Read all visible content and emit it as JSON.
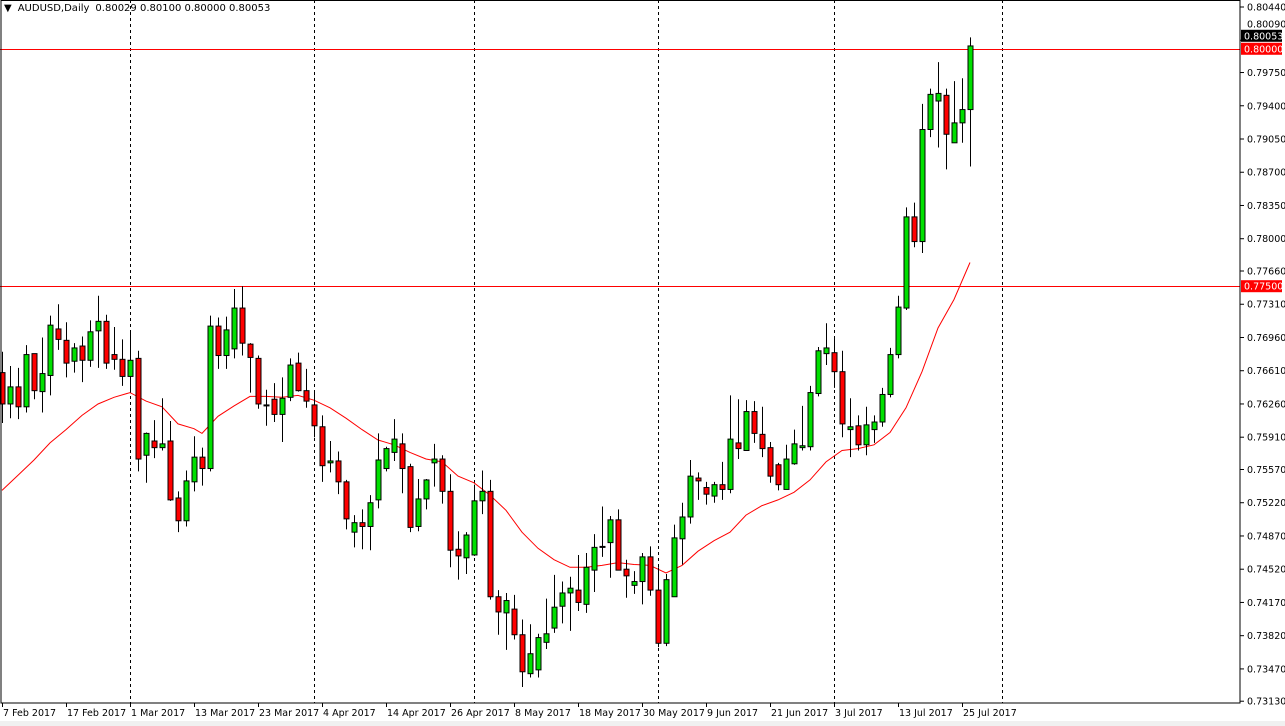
{
  "header": {
    "menu_icon": "triangle-down-icon",
    "symbol_period": "AUDUSD,Daily",
    "ohlc": "0.80029 0.80100 0.80000 0.80053"
  },
  "chart_data": {
    "type": "candlestick",
    "symbol": "AUDUSD",
    "period": "Daily",
    "ylim": [
      0.7313,
      0.8044
    ],
    "y_ticks": [
      "0.80440",
      "0.80090",
      "0.79750",
      "0.79400",
      "0.79050",
      "0.78700",
      "0.78350",
      "0.78000",
      "0.77660",
      "0.77310",
      "0.76960",
      "0.76610",
      "0.76260",
      "0.75910",
      "0.75570",
      "0.75220",
      "0.74870",
      "0.74520",
      "0.74170",
      "0.73820",
      "0.73470",
      "0.73130"
    ],
    "x_ticks": [
      {
        "date": "2017-02-07",
        "label": "7 Feb 2017"
      },
      {
        "date": "2017-02-17",
        "label": "17 Feb 2017"
      },
      {
        "date": "2017-03-01",
        "label": "1 Mar 2017"
      },
      {
        "date": "2017-03-13",
        "label": "13 Mar 2017"
      },
      {
        "date": "2017-03-23",
        "label": "23 Mar 2017"
      },
      {
        "date": "2017-04-04",
        "label": "4 Apr 2017"
      },
      {
        "date": "2017-04-14",
        "label": "14 Apr 2017"
      },
      {
        "date": "2017-04-26",
        "label": "26 Apr 2017"
      },
      {
        "date": "2017-05-08",
        "label": "8 May 2017"
      },
      {
        "date": "2017-05-18",
        "label": "18 May 2017"
      },
      {
        "date": "2017-05-30",
        "label": "30 May 2017"
      },
      {
        "date": "2017-06-09",
        "label": "9 Jun 2017"
      },
      {
        "date": "2017-06-21",
        "label": "21 Jun 2017"
      },
      {
        "date": "2017-07-03",
        "label": "3 Jul 2017"
      },
      {
        "date": "2017-07-13",
        "label": "13 Jul 2017"
      },
      {
        "date": "2017-07-25",
        "label": "25 Jul 2017"
      }
    ],
    "month_separators": [
      "2017-03-01",
      "2017-04-03",
      "2017-05-01",
      "2017-06-01",
      "2017-07-03",
      "2017-08-01"
    ],
    "grid": false,
    "colors": {
      "bull": "#00e000",
      "bear": "#ff0000",
      "outline": "#000000",
      "ma": "#ff0000",
      "level": "#ff0000",
      "bid": "#000000"
    },
    "horizontal_levels": [
      {
        "price": 0.8,
        "label": "0.80000"
      },
      {
        "price": 0.775,
        "label": "0.77500"
      }
    ],
    "bid": {
      "price": 0.80053,
      "label": "0.80053"
    },
    "candle_fields": [
      "date",
      "open",
      "high",
      "low",
      "close"
    ],
    "candles": [
      [
        "2017-02-07",
        0.7659,
        0.7681,
        0.7606,
        0.7626
      ],
      [
        "2017-02-08",
        0.7626,
        0.7666,
        0.7611,
        0.7644
      ],
      [
        "2017-02-09",
        0.7644,
        0.7664,
        0.761,
        0.7623
      ],
      [
        "2017-02-10",
        0.7623,
        0.7688,
        0.7617,
        0.7678
      ],
      [
        "2017-02-13",
        0.7679,
        0.7679,
        0.7631,
        0.764
      ],
      [
        "2017-02-14",
        0.7639,
        0.7696,
        0.7617,
        0.7658
      ],
      [
        "2017-02-15",
        0.7656,
        0.7719,
        0.7635,
        0.7709
      ],
      [
        "2017-02-16",
        0.7705,
        0.7731,
        0.7683,
        0.7694
      ],
      [
        "2017-02-17",
        0.7693,
        0.7712,
        0.7654,
        0.7669
      ],
      [
        "2017-02-20",
        0.7671,
        0.769,
        0.7659,
        0.7685
      ],
      [
        "2017-02-21",
        0.7687,
        0.7697,
        0.7649,
        0.7672
      ],
      [
        "2017-02-22",
        0.7672,
        0.7714,
        0.7665,
        0.7702
      ],
      [
        "2017-02-23",
        0.7703,
        0.774,
        0.7664,
        0.7713
      ],
      [
        "2017-02-24",
        0.7713,
        0.772,
        0.7663,
        0.7669
      ],
      [
        "2017-02-27",
        0.7678,
        0.7707,
        0.7662,
        0.7673
      ],
      [
        "2017-02-28",
        0.7673,
        0.7694,
        0.7645,
        0.7655
      ],
      [
        "2017-03-01",
        0.7655,
        0.7702,
        0.7638,
        0.7672
      ],
      [
        "2017-03-02",
        0.7674,
        0.7682,
        0.7555,
        0.7568
      ],
      [
        "2017-03-03",
        0.7572,
        0.7596,
        0.7543,
        0.7595
      ],
      [
        "2017-03-06",
        0.7587,
        0.7609,
        0.7569,
        0.758
      ],
      [
        "2017-03-07",
        0.758,
        0.7632,
        0.7577,
        0.7584
      ],
      [
        "2017-03-08",
        0.7587,
        0.7608,
        0.7524,
        0.7525
      ],
      [
        "2017-03-09",
        0.7527,
        0.7534,
        0.7491,
        0.7503
      ],
      [
        "2017-03-10",
        0.7503,
        0.7556,
        0.7497,
        0.7545
      ],
      [
        "2017-03-13",
        0.7544,
        0.7592,
        0.7534,
        0.757
      ],
      [
        "2017-03-14",
        0.757,
        0.758,
        0.754,
        0.7558
      ],
      [
        "2017-03-15",
        0.7558,
        0.7719,
        0.7555,
        0.7708
      ],
      [
        "2017-03-16",
        0.7708,
        0.7717,
        0.7663,
        0.7677
      ],
      [
        "2017-03-17",
        0.7677,
        0.7718,
        0.7663,
        0.7704
      ],
      [
        "2017-03-20",
        0.7684,
        0.7747,
        0.7674,
        0.7727
      ],
      [
        "2017-03-21",
        0.7727,
        0.775,
        0.7677,
        0.769
      ],
      [
        "2017-03-22",
        0.7689,
        0.769,
        0.7638,
        0.7675
      ],
      [
        "2017-03-23",
        0.7674,
        0.7677,
        0.7621,
        0.7626
      ],
      [
        "2017-03-24",
        0.7625,
        0.7641,
        0.7603,
        0.7624
      ],
      [
        "2017-03-27",
        0.7631,
        0.7648,
        0.7607,
        0.7615
      ],
      [
        "2017-03-28",
        0.7615,
        0.7654,
        0.7586,
        0.7632
      ],
      [
        "2017-03-29",
        0.7633,
        0.7674,
        0.7629,
        0.7667
      ],
      [
        "2017-03-30",
        0.7669,
        0.768,
        0.7639,
        0.764
      ],
      [
        "2017-03-31",
        0.764,
        0.7663,
        0.7622,
        0.7629
      ],
      [
        "2017-04-03",
        0.7625,
        0.7639,
        0.7591,
        0.7603
      ],
      [
        "2017-04-04",
        0.7602,
        0.7614,
        0.7544,
        0.7561
      ],
      [
        "2017-04-05",
        0.7564,
        0.7587,
        0.7554,
        0.7566
      ],
      [
        "2017-04-06",
        0.7566,
        0.7576,
        0.7531,
        0.7544
      ],
      [
        "2017-04-07",
        0.7544,
        0.7546,
        0.7494,
        0.7505
      ],
      [
        "2017-04-10",
        0.7491,
        0.7509,
        0.7475,
        0.7501
      ],
      [
        "2017-04-11",
        0.7501,
        0.7515,
        0.7473,
        0.7497
      ],
      [
        "2017-04-12",
        0.7497,
        0.753,
        0.7472,
        0.7522
      ],
      [
        "2017-04-13",
        0.7525,
        0.7595,
        0.7516,
        0.7567
      ],
      [
        "2017-04-14",
        0.7558,
        0.7581,
        0.7555,
        0.7579
      ],
      [
        "2017-04-17",
        0.7575,
        0.761,
        0.7566,
        0.7589
      ],
      [
        "2017-04-18",
        0.7584,
        0.7595,
        0.7532,
        0.7558
      ],
      [
        "2017-04-19",
        0.756,
        0.7563,
        0.7491,
        0.7496
      ],
      [
        "2017-04-20",
        0.7497,
        0.7547,
        0.7492,
        0.7526
      ],
      [
        "2017-04-21",
        0.7526,
        0.7547,
        0.7515,
        0.7546
      ],
      [
        "2017-04-24",
        0.7564,
        0.7584,
        0.7539,
        0.7568
      ],
      [
        "2017-04-25",
        0.7568,
        0.7572,
        0.7521,
        0.7534
      ],
      [
        "2017-04-26",
        0.7534,
        0.7552,
        0.7454,
        0.7472
      ],
      [
        "2017-04-27",
        0.7473,
        0.7492,
        0.7441,
        0.7466
      ],
      [
        "2017-04-28",
        0.7464,
        0.7491,
        0.7447,
        0.7488
      ],
      [
        "2017-05-01",
        0.7467,
        0.7541,
        0.7466,
        0.7524
      ],
      [
        "2017-05-02",
        0.7524,
        0.7556,
        0.751,
        0.7534
      ],
      [
        "2017-05-03",
        0.7534,
        0.7546,
        0.742,
        0.7423
      ],
      [
        "2017-05-04",
        0.7423,
        0.743,
        0.7383,
        0.7407
      ],
      [
        "2017-05-05",
        0.7406,
        0.7427,
        0.7367,
        0.7419
      ],
      [
        "2017-05-08",
        0.741,
        0.7425,
        0.7378,
        0.7383
      ],
      [
        "2017-05-09",
        0.7383,
        0.7399,
        0.7328,
        0.7344
      ],
      [
        "2017-05-10",
        0.7342,
        0.7394,
        0.7338,
        0.7363
      ],
      [
        "2017-05-11",
        0.7346,
        0.7384,
        0.7338,
        0.738
      ],
      [
        "2017-05-12",
        0.7375,
        0.7421,
        0.7368,
        0.7384
      ],
      [
        "2017-05-15",
        0.739,
        0.7446,
        0.7385,
        0.7412
      ],
      [
        "2017-05-16",
        0.7413,
        0.7439,
        0.7395,
        0.7427
      ],
      [
        "2017-05-17",
        0.7427,
        0.7444,
        0.7387,
        0.7432
      ],
      [
        "2017-05-18",
        0.743,
        0.7467,
        0.7408,
        0.7417
      ],
      [
        "2017-05-19",
        0.7415,
        0.7469,
        0.7406,
        0.7454
      ],
      [
        "2017-05-22",
        0.7451,
        0.7489,
        0.7428,
        0.7475
      ],
      [
        "2017-05-23",
        0.7475,
        0.7518,
        0.7465,
        0.7476
      ],
      [
        "2017-05-24",
        0.748,
        0.7508,
        0.7443,
        0.7504
      ],
      [
        "2017-05-25",
        0.7504,
        0.7515,
        0.7451,
        0.7451
      ],
      [
        "2017-05-26",
        0.7452,
        0.7462,
        0.7422,
        0.7445
      ],
      [
        "2017-05-29",
        0.7435,
        0.745,
        0.7426,
        0.7439
      ],
      [
        "2017-05-30",
        0.7439,
        0.7469,
        0.7415,
        0.7465
      ],
      [
        "2017-05-31",
        0.7465,
        0.7476,
        0.7424,
        0.743
      ],
      [
        "2017-06-01",
        0.743,
        0.7454,
        0.737,
        0.7374
      ],
      [
        "2017-06-02",
        0.7374,
        0.7447,
        0.7371,
        0.7441
      ],
      [
        "2017-06-05",
        0.7423,
        0.7499,
        0.7423,
        0.7485
      ],
      [
        "2017-06-06",
        0.7484,
        0.7522,
        0.7457,
        0.7507
      ],
      [
        "2017-06-07",
        0.7507,
        0.7567,
        0.75,
        0.755
      ],
      [
        "2017-06-08",
        0.7548,
        0.7554,
        0.7525,
        0.7545
      ],
      [
        "2017-06-09",
        0.7538,
        0.7544,
        0.752,
        0.7531
      ],
      [
        "2017-06-12",
        0.7529,
        0.7544,
        0.7522,
        0.7541
      ],
      [
        "2017-06-13",
        0.7541,
        0.7565,
        0.7525,
        0.7536
      ],
      [
        "2017-06-14",
        0.7536,
        0.7635,
        0.7532,
        0.7589
      ],
      [
        "2017-06-15",
        0.7585,
        0.7631,
        0.7568,
        0.7579
      ],
      [
        "2017-06-16",
        0.7577,
        0.763,
        0.7577,
        0.7618
      ],
      [
        "2017-06-19",
        0.7618,
        0.7629,
        0.7585,
        0.7595
      ],
      [
        "2017-06-20",
        0.7594,
        0.7623,
        0.757,
        0.7579
      ],
      [
        "2017-06-21",
        0.758,
        0.7586,
        0.7543,
        0.755
      ],
      [
        "2017-06-22",
        0.7562,
        0.7564,
        0.7535,
        0.7541
      ],
      [
        "2017-06-23",
        0.7536,
        0.7583,
        0.7536,
        0.7568
      ],
      [
        "2017-06-26",
        0.7563,
        0.7599,
        0.7562,
        0.7584
      ],
      [
        "2017-06-27",
        0.758,
        0.7624,
        0.7577,
        0.7582
      ],
      [
        "2017-06-28",
        0.7581,
        0.7645,
        0.7577,
        0.7638
      ],
      [
        "2017-06-29",
        0.7637,
        0.7686,
        0.7634,
        0.7682
      ],
      [
        "2017-06-30",
        0.7679,
        0.7711,
        0.7667,
        0.7685
      ],
      [
        "2017-07-03",
        0.768,
        0.7696,
        0.7643,
        0.766
      ],
      [
        "2017-07-04",
        0.766,
        0.7682,
        0.7591,
        0.7605
      ],
      [
        "2017-07-05",
        0.7599,
        0.7632,
        0.757,
        0.7602
      ],
      [
        "2017-07-06",
        0.7603,
        0.7614,
        0.7577,
        0.7583
      ],
      [
        "2017-07-07",
        0.7583,
        0.7623,
        0.7572,
        0.7604
      ],
      [
        "2017-07-10",
        0.7599,
        0.7614,
        0.7585,
        0.7607
      ],
      [
        "2017-07-11",
        0.7607,
        0.7643,
        0.7602,
        0.7636
      ],
      [
        "2017-07-12",
        0.7636,
        0.7685,
        0.7633,
        0.7678
      ],
      [
        "2017-07-13",
        0.7678,
        0.774,
        0.7674,
        0.7728
      ],
      [
        "2017-07-14",
        0.7727,
        0.7833,
        0.7725,
        0.7823
      ],
      [
        "2017-07-17",
        0.7823,
        0.7838,
        0.7791,
        0.7797
      ],
      [
        "2017-07-18",
        0.7797,
        0.7942,
        0.7785,
        0.7915
      ],
      [
        "2017-07-19",
        0.7915,
        0.7958,
        0.7907,
        0.7952
      ],
      [
        "2017-07-20",
        0.7945,
        0.7986,
        0.7896,
        0.7953
      ],
      [
        "2017-07-21",
        0.7951,
        0.7958,
        0.7873,
        0.791
      ],
      [
        "2017-07-24",
        0.7901,
        0.7966,
        0.7901,
        0.7922
      ],
      [
        "2017-07-25",
        0.7922,
        0.7969,
        0.7901,
        0.7936
      ],
      [
        "2017-07-26",
        0.7936,
        0.8012,
        0.7876,
        0.8003
      ]
    ],
    "moving_average": [
      [
        "2017-02-07",
        0.7535
      ],
      [
        "2017-02-09",
        0.7551
      ],
      [
        "2017-02-13",
        0.7567
      ],
      [
        "2017-02-15",
        0.7585
      ],
      [
        "2017-02-17",
        0.7599
      ],
      [
        "2017-02-21",
        0.7614
      ],
      [
        "2017-02-23",
        0.7626
      ],
      [
        "2017-02-27",
        0.7633
      ],
      [
        "2017-03-01",
        0.7638
      ],
      [
        "2017-03-03",
        0.7629
      ],
      [
        "2017-03-07",
        0.7623
      ],
      [
        "2017-03-09",
        0.7605
      ],
      [
        "2017-03-13",
        0.76
      ],
      [
        "2017-03-14",
        0.7595
      ],
      [
        "2017-03-16",
        0.7613
      ],
      [
        "2017-03-20",
        0.7624
      ],
      [
        "2017-03-22",
        0.7634
      ],
      [
        "2017-03-24",
        0.7634
      ],
      [
        "2017-03-28",
        0.7633
      ],
      [
        "2017-03-30",
        0.7635
      ],
      [
        "2017-04-03",
        0.763
      ],
      [
        "2017-04-05",
        0.7622
      ],
      [
        "2017-04-07",
        0.7611
      ],
      [
        "2017-04-11",
        0.7599
      ],
      [
        "2017-04-13",
        0.7588
      ],
      [
        "2017-04-17",
        0.7583
      ],
      [
        "2017-04-19",
        0.7575
      ],
      [
        "2017-04-21",
        0.7568
      ],
      [
        "2017-04-25",
        0.7565
      ],
      [
        "2017-04-27",
        0.755
      ],
      [
        "2017-05-01",
        0.7543
      ],
      [
        "2017-05-03",
        0.753
      ],
      [
        "2017-05-05",
        0.7514
      ],
      [
        "2017-05-09",
        0.7491
      ],
      [
        "2017-05-11",
        0.7474
      ],
      [
        "2017-05-15",
        0.7462
      ],
      [
        "2017-05-17",
        0.7454
      ],
      [
        "2017-05-19",
        0.7454
      ],
      [
        "2017-05-23",
        0.7456
      ],
      [
        "2017-05-25",
        0.7459
      ],
      [
        "2017-05-29",
        0.7457
      ],
      [
        "2017-05-31",
        0.7456
      ],
      [
        "2017-06-02",
        0.7448
      ],
      [
        "2017-06-06",
        0.7456
      ],
      [
        "2017-06-08",
        0.7471
      ],
      [
        "2017-06-12",
        0.7482
      ],
      [
        "2017-06-14",
        0.7491
      ],
      [
        "2017-06-16",
        0.7509
      ],
      [
        "2017-06-20",
        0.7519
      ],
      [
        "2017-06-22",
        0.7525
      ],
      [
        "2017-06-26",
        0.7533
      ],
      [
        "2017-06-28",
        0.7546
      ],
      [
        "2017-06-30",
        0.7565
      ],
      [
        "2017-07-04",
        0.7577
      ],
      [
        "2017-07-06",
        0.7579
      ],
      [
        "2017-07-10",
        0.7583
      ],
      [
        "2017-07-12",
        0.7596
      ],
      [
        "2017-07-14",
        0.7622
      ],
      [
        "2017-07-18",
        0.766
      ],
      [
        "2017-07-20",
        0.7706
      ],
      [
        "2017-07-24",
        0.7736
      ],
      [
        "2017-07-26",
        0.7775
      ]
    ]
  }
}
